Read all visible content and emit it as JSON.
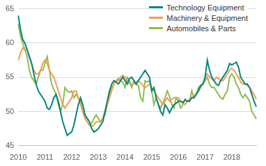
{
  "chart_data": {
    "type": "line",
    "categories": [
      "2010",
      null,
      null,
      null,
      null,
      null,
      null,
      null,
      null,
      null,
      null,
      null,
      "2011",
      null,
      null,
      null,
      null,
      null,
      null,
      null,
      null,
      null,
      null,
      null,
      "2012",
      null,
      null,
      null,
      null,
      null,
      null,
      null,
      null,
      null,
      null,
      null,
      "2013",
      null,
      null,
      null,
      null,
      null,
      null,
      null,
      null,
      null,
      null,
      null,
      "2014",
      null,
      null,
      null,
      null,
      null,
      null,
      null,
      null,
      null,
      null,
      null,
      "2015",
      null,
      null,
      null,
      null,
      null,
      null,
      null,
      null,
      null,
      null,
      null,
      "2016",
      null,
      null,
      null,
      null,
      null,
      null,
      null,
      null,
      null,
      null,
      null,
      "2017",
      null,
      null,
      null,
      null,
      null,
      null,
      null,
      null,
      null,
      null,
      null,
      "2018",
      null,
      null,
      null,
      null,
      null,
      null,
      null,
      null,
      null,
      null,
      null
    ],
    "series": [
      {
        "name": "Technology Equipment",
        "color": "#00857f",
        "values": [
          64,
          62,
          60.5,
          60,
          59,
          58,
          57,
          55.5,
          54,
          53,
          52.5,
          52,
          51.5,
          50.5,
          50.3,
          51,
          52,
          52.5,
          51.5,
          50,
          48.5,
          47.5,
          46.5,
          46.8,
          47,
          48,
          49.5,
          51,
          52,
          51,
          49.5,
          49,
          48.5,
          47.5,
          47,
          47.2,
          47.5,
          48,
          48.5,
          50,
          51.5,
          53,
          54,
          54.5,
          54.3,
          54,
          54.5,
          55,
          54.5,
          54,
          54.8,
          55,
          54.5,
          54,
          54.5,
          55,
          55.5,
          56,
          55.5,
          55,
          53,
          53.5,
          52,
          51,
          50,
          49.5,
          51,
          50.5,
          49.8,
          50.5,
          51,
          51.2,
          51.5,
          51.5,
          51.3,
          51.7,
          51.5,
          51.5,
          52,
          52,
          52.5,
          53,
          53.8,
          54,
          55,
          57.5,
          56,
          55,
          54.5,
          54,
          53.8,
          54.5,
          55,
          55.5,
          56,
          57,
          56.8,
          57,
          57.2,
          56.5,
          55,
          54.5,
          54,
          54,
          53.5,
          52.5,
          51.5,
          50.7
        ]
      },
      {
        "name": "Machinery & Equipment",
        "color": "#f39c53",
        "values": [
          57.5,
          58.5,
          59.3,
          59,
          59,
          58,
          57,
          56,
          55.5,
          55.5,
          56,
          57,
          57.5,
          57,
          56,
          55.5,
          55,
          54,
          53,
          52,
          51,
          50.5,
          51,
          51.5,
          52,
          53,
          53,
          52,
          51,
          50,
          49,
          48.5,
          48,
          47.8,
          48,
          48.5,
          48.5,
          48.5,
          49,
          50,
          51,
          52,
          53,
          54,
          54.5,
          54.5,
          55,
          55.3,
          55,
          54.5,
          54,
          54,
          54,
          54.3,
          54.5,
          54.2,
          53.8,
          53.5,
          53.7,
          54,
          53.5,
          53,
          52.5,
          52,
          51.5,
          51,
          51.5,
          52,
          51.5,
          51.8,
          52,
          52,
          52,
          51.5,
          51.2,
          51,
          51.5,
          51.8,
          52,
          52.3,
          52.5,
          53,
          53.5,
          54,
          55,
          55.5,
          55,
          54.8,
          54.5,
          55,
          54.8,
          54.5,
          54.5,
          55,
          55.5,
          56,
          56.3,
          56,
          55.5,
          55,
          54.3,
          54,
          54,
          53.8,
          53.5,
          53,
          52.5,
          51.8
        ]
      },
      {
        "name": "Automobiles & Parts",
        "color": "#8cbd4a",
        "values": [
          62.8,
          61,
          60,
          59,
          58,
          56,
          55,
          54.5,
          54,
          55,
          56,
          56,
          57,
          58,
          56,
          54,
          53.2,
          52.5,
          51,
          50,
          51,
          53.5,
          53,
          52.8,
          53,
          52,
          52.5,
          52,
          51.5,
          50,
          49,
          48.5,
          48,
          48.3,
          49,
          49.5,
          49,
          48.5,
          49,
          49.5,
          51,
          52.5,
          53.5,
          54,
          54.5,
          54.8,
          54.5,
          54.3,
          53.5,
          55,
          54.5,
          53.5,
          54.5,
          54,
          53.8,
          52,
          51.5,
          54.5,
          54.3,
          54.5,
          53,
          51,
          52,
          51,
          50.5,
          51.2,
          52,
          53,
          52.2,
          51,
          50.5,
          52,
          51.5,
          50.5,
          51,
          51.8,
          51.5,
          51.5,
          53,
          52,
          52.5,
          53.5,
          53.8,
          54,
          54.5,
          55,
          54,
          53.5,
          53.5,
          53,
          52.5,
          52,
          51.8,
          52.5,
          53,
          55,
          55.5,
          55,
          54,
          53.5,
          52.5,
          52,
          52.5,
          52,
          51.5,
          50,
          49.5,
          48.9
        ]
      }
    ],
    "ylim": [
      45,
      65
    ],
    "yticks": [
      45,
      50,
      55,
      60,
      65
    ],
    "grid": true,
    "legend": "top right"
  }
}
